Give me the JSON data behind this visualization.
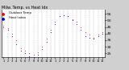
{
  "title": "Milw. Temp. vs Heat Idx (Last 24 Hrs)",
  "background_color": "#d0d0d0",
  "plot_bg": "#ffffff",
  "grid_color": "#888888",
  "temp_color": "#ff0000",
  "heat_color": "#0000cc",
  "ylim": [
    22,
    58
  ],
  "yticks": [
    25,
    30,
    35,
    40,
    45,
    50,
    55
  ],
  "ytick_labels": [
    "25",
    "30",
    "35",
    "40",
    "45",
    "50",
    "55"
  ],
  "temp_values": [
    46,
    44,
    40,
    35,
    29,
    27,
    25,
    24,
    26,
    30,
    36,
    43,
    49,
    53,
    54,
    53,
    51,
    49,
    45,
    41,
    39,
    37,
    39,
    41
  ],
  "heat_values": [
    45,
    43,
    38,
    32,
    27,
    25,
    23,
    22,
    24,
    28,
    34,
    41,
    47,
    53,
    54,
    53,
    50,
    47,
    43,
    38,
    37,
    36,
    38,
    40
  ],
  "n_points": 24,
  "xtick_labels": [
    "1",
    "2",
    "3",
    "4",
    "5",
    "6",
    "7",
    "8",
    "9",
    "10",
    "11",
    "12",
    "1",
    "2",
    "3",
    "4",
    "5",
    "6",
    "7",
    "8",
    "9",
    "10",
    "11",
    "12"
  ],
  "marker_size": 1.2,
  "title_fontsize": 3.8,
  "tick_fontsize": 3.2,
  "x_tick_fontsize": 2.5
}
